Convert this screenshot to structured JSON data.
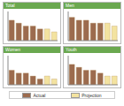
{
  "chart_data": [
    {
      "type": "bar",
      "title": "Total",
      "categories": [
        null,
        null,
        null,
        null,
        null,
        null,
        null
      ],
      "series": [
        {
          "name": "Actual",
          "color": "#9c6b4e",
          "values": [
            7,
            6,
            5,
            5,
            4,
            null,
            null
          ]
        },
        {
          "name": "Projection",
          "color": "#f3e3a0",
          "values": [
            null,
            null,
            null,
            null,
            null,
            4,
            3
          ]
        }
      ],
      "ylim": [
        0,
        10
      ],
      "yticks": [
        0,
        5,
        10
      ],
      "stacked": true,
      "tick_labels": false
    },
    {
      "type": "bar",
      "title": "Men",
      "categories": [
        null,
        null,
        null,
        null,
        null,
        null,
        null
      ],
      "series": [
        {
          "name": "Actual",
          "color": "#9c6b4e",
          "values": [
            8,
            7,
            7,
            6,
            6,
            null,
            null
          ]
        },
        {
          "name": "Projection",
          "color": "#f3e3a0",
          "values": [
            null,
            null,
            null,
            null,
            null,
            6,
            5
          ]
        }
      ],
      "ylim": [
        0,
        10
      ],
      "yticks": [
        0,
        5,
        10
      ],
      "stacked": true,
      "tick_labels": false
    },
    {
      "type": "bar",
      "title": "Women",
      "categories": [
        null,
        null,
        null,
        null,
        null,
        null,
        null
      ],
      "series": [
        {
          "name": "Actual",
          "color": "#9c6b4e",
          "values": [
            5,
            4,
            4,
            3,
            2,
            null,
            null
          ]
        },
        {
          "name": "Projection",
          "color": "#f3e3a0",
          "values": [
            null,
            null,
            null,
            null,
            null,
            3,
            2
          ]
        }
      ],
      "ylim": [
        0,
        10
      ],
      "yticks": [
        0,
        5,
        10
      ],
      "stacked": true,
      "tick_labels": false
    },
    {
      "type": "bar",
      "title": "Youth",
      "categories": [
        null,
        null,
        null,
        null,
        null,
        null,
        null
      ],
      "series": [
        {
          "name": "Actual",
          "color": "#9c6b4e",
          "values": [
            7,
            6,
            5,
            5,
            4,
            null,
            null
          ]
        },
        {
          "name": "Projection",
          "color": "#f3e3a0",
          "values": [
            null,
            null,
            null,
            null,
            null,
            3,
            3
          ]
        }
      ],
      "ylim": [
        0,
        10
      ],
      "yticks": [
        0,
        5,
        10
      ],
      "stacked": true,
      "tick_labels": false
    }
  ]
}
